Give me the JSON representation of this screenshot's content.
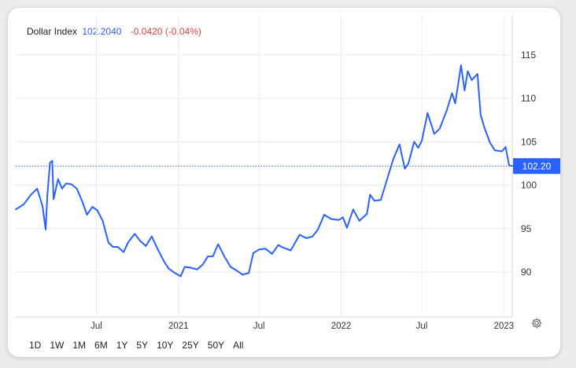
{
  "header": {
    "symbol": "Dollar Index",
    "price": "102.2040",
    "change": "-0.0420 (-0.04%)"
  },
  "ranges": [
    "1D",
    "1W",
    "1M",
    "6M",
    "1Y",
    "5Y",
    "10Y",
    "25Y",
    "50Y",
    "All"
  ],
  "colors": {
    "line": "#2962ff",
    "tag": "#2962ff",
    "negative": "#e8413c",
    "grid": "#eaeaea"
  },
  "settings_icon": "gear-icon",
  "chart_data": {
    "type": "line",
    "title": "",
    "xlabel": "",
    "ylabel": "",
    "x_ticks": [
      "Jul",
      "2021",
      "Jul",
      "2022",
      "Jul",
      "2023"
    ],
    "y_ticks": [
      "90",
      "95",
      "100",
      "105",
      "110",
      "115"
    ],
    "ylim": [
      85.5,
      116
    ],
    "last_value_label": "102.20",
    "grid": true,
    "series": [
      {
        "x": [
          "2020-01-02",
          "2020-01-20",
          "2020-02-05",
          "2020-02-19",
          "2020-03-02",
          "2020-03-09",
          "2020-03-13",
          "2020-03-19",
          "2020-03-24",
          "2020-03-27",
          "2020-04-06",
          "2020-04-15",
          "2020-04-24",
          "2020-05-06",
          "2020-05-18",
          "2020-05-29",
          "2020-06-10",
          "2020-06-22",
          "2020-07-03",
          "2020-07-15",
          "2020-07-28",
          "2020-08-07",
          "2020-08-18",
          "2020-08-31",
          "2020-09-10",
          "2020-09-25",
          "2020-10-07",
          "2020-10-20",
          "2020-11-02",
          "2020-11-16",
          "2020-11-30",
          "2020-12-10",
          "2020-12-21",
          "2021-01-06",
          "2021-01-15",
          "2021-01-29",
          "2021-02-12",
          "2021-02-25",
          "2021-03-08",
          "2021-03-19",
          "2021-03-31",
          "2021-04-14",
          "2021-04-28",
          "2021-05-14",
          "2021-05-25",
          "2021-06-08",
          "2021-06-18",
          "2021-07-01",
          "2021-07-15",
          "2021-07-30",
          "2021-08-13",
          "2021-08-25",
          "2021-09-10",
          "2021-09-30",
          "2021-10-15",
          "2021-10-29",
          "2021-11-10",
          "2021-11-24",
          "2021-12-10",
          "2021-12-27",
          "2022-01-05",
          "2022-01-14",
          "2022-01-28",
          "2022-02-11",
          "2022-02-28",
          "2022-03-07",
          "2022-03-17",
          "2022-03-31",
          "2022-04-13",
          "2022-04-28",
          "2022-05-12",
          "2022-05-24",
          "2022-06-01",
          "2022-06-14",
          "2022-06-23",
          "2022-07-01",
          "2022-07-14",
          "2022-07-29",
          "2022-08-10",
          "2022-08-26",
          "2022-09-07",
          "2022-09-14",
          "2022-09-27",
          "2022-10-05",
          "2022-10-12",
          "2022-10-21",
          "2022-11-03",
          "2022-11-10",
          "2022-11-18",
          "2022-12-01",
          "2022-12-12",
          "2022-12-28",
          "2023-01-05",
          "2023-01-13",
          "2023-01-20"
        ],
        "y": [
          97.2,
          97.8,
          98.9,
          99.6,
          97.6,
          94.9,
          98.9,
          102.6,
          102.8,
          98.4,
          100.7,
          99.6,
          100.2,
          100.1,
          99.6,
          98.3,
          96.6,
          97.5,
          97.1,
          95.9,
          93.4,
          92.9,
          92.9,
          92.3,
          93.4,
          94.4,
          93.6,
          93.0,
          94.1,
          92.6,
          91.2,
          90.4,
          90.0,
          89.5,
          90.6,
          90.5,
          90.3,
          90.9,
          91.8,
          91.8,
          93.2,
          91.8,
          90.6,
          90.1,
          89.7,
          89.9,
          92.2,
          92.6,
          92.7,
          92.1,
          93.1,
          92.8,
          92.5,
          94.3,
          93.9,
          94.1,
          94.9,
          96.6,
          96.1,
          96.0,
          96.3,
          95.1,
          97.2,
          95.9,
          96.7,
          98.9,
          98.2,
          98.3,
          100.5,
          103.0,
          104.7,
          101.9,
          102.5,
          105.0,
          104.3,
          105.1,
          108.3,
          105.9,
          106.5,
          108.6,
          110.6,
          109.4,
          113.8,
          110.9,
          113.1,
          112.1,
          112.8,
          108.1,
          106.7,
          104.9,
          104.0,
          103.9,
          104.4,
          102.3,
          102.2
        ]
      }
    ]
  }
}
